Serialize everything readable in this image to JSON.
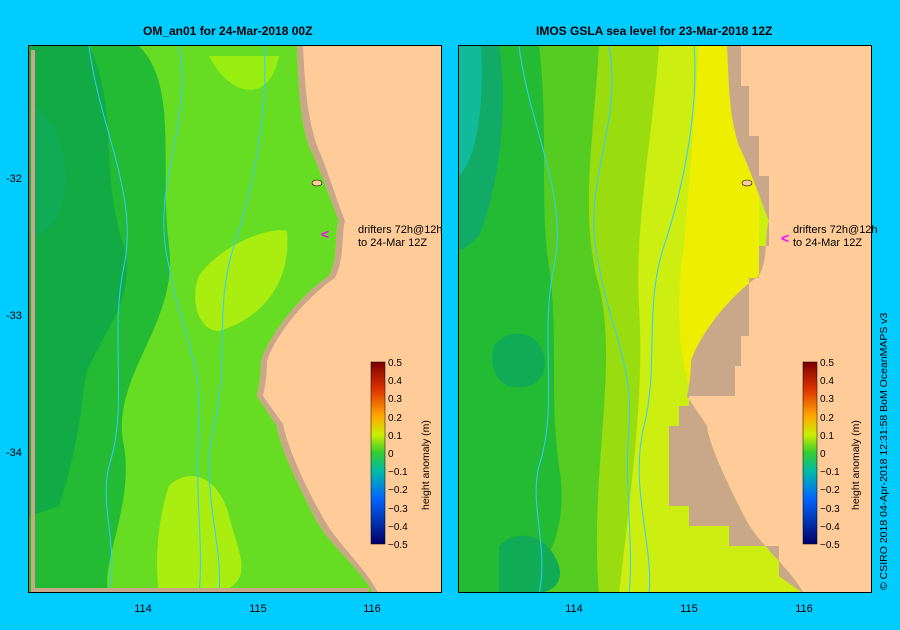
{
  "panels": [
    {
      "title": "OM_an01  for 24-Mar-2018 00Z"
    },
    {
      "title": "IMOS GSLA sea level  for 23-Mar-2018 12Z"
    }
  ],
  "axes": {
    "y_ticks": [
      "-32",
      "-33",
      "-34"
    ],
    "x_ticks": [
      "114",
      "115",
      "116"
    ]
  },
  "colorbar": {
    "label": "height anomaly (m)",
    "ticks": [
      "0.5",
      "0.4",
      "0.3",
      "0.2",
      "0.1",
      "0",
      "−0.1",
      "−0.2",
      "−0.3",
      "−0.4",
      "−0.5"
    ]
  },
  "drifter_note": {
    "line1": "drifters 72h@12h",
    "line2": "to 24-Mar 12Z"
  },
  "credit": "© CSIRO 2018   04-Apr-2018 12:31:58 BoM OceanMAPS v3",
  "colors": {
    "background": "#00ccff",
    "land": "#ffcc99",
    "coast_strip": "#c8a888",
    "rivers": "#33ccff",
    "drifter_marker": "#ff00ff"
  }
}
